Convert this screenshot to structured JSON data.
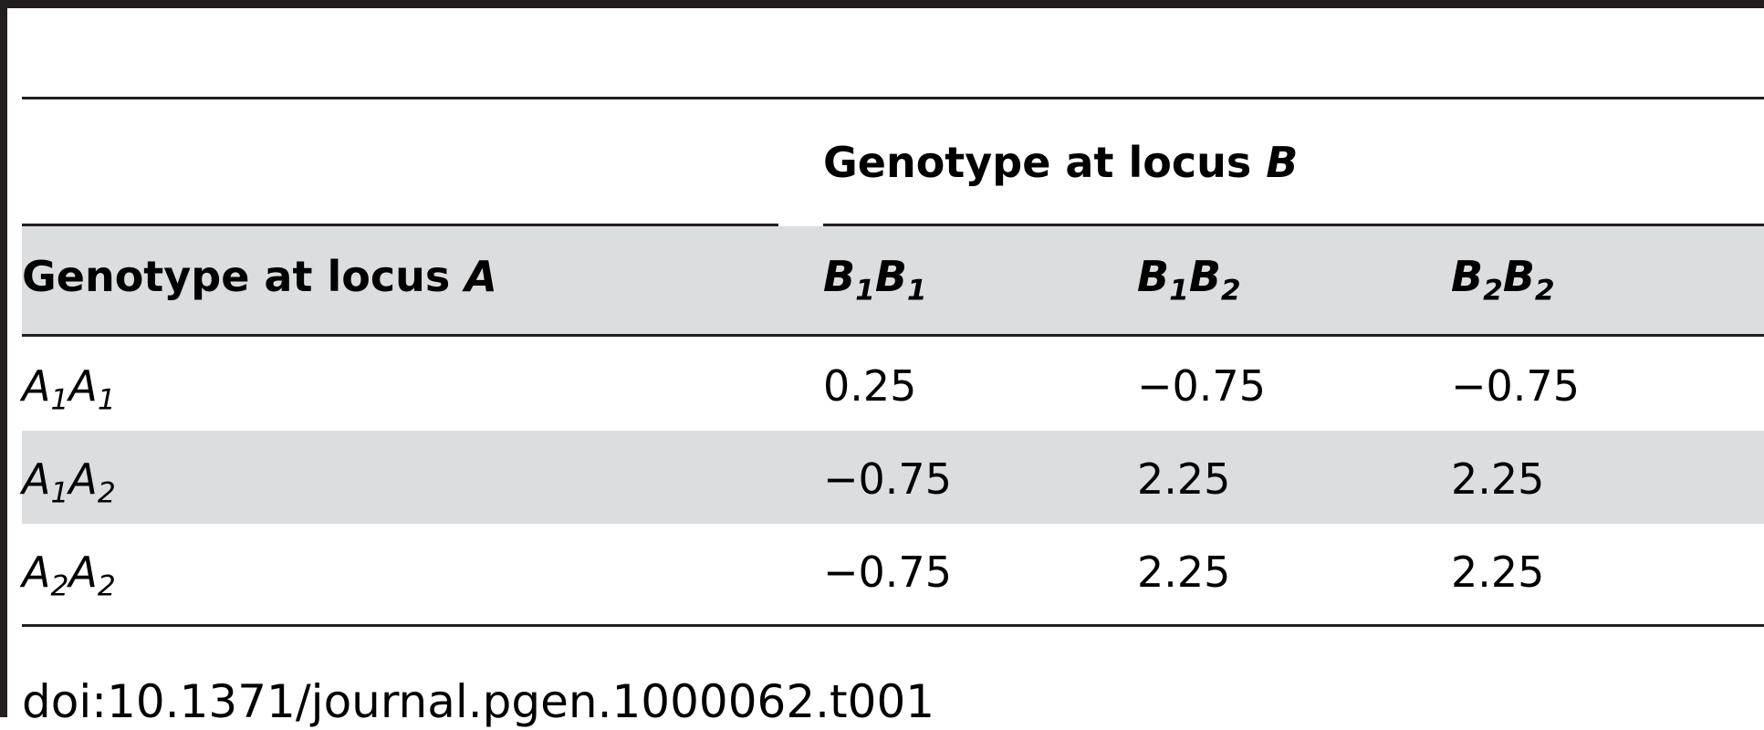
{
  "table": {
    "spanner_header": {
      "text": "Genotype at locus ",
      "italic_var": "B"
    },
    "row_header": {
      "text": "Genotype at locus ",
      "italic_var": "A"
    },
    "columns": [
      {
        "letter1": "B",
        "sub1": "1",
        "letter2": "B",
        "sub2": "1"
      },
      {
        "letter1": "B",
        "sub1": "1",
        "letter2": "B",
        "sub2": "2"
      },
      {
        "letter1": "B",
        "sub1": "2",
        "letter2": "B",
        "sub2": "2"
      }
    ],
    "rows": [
      {
        "letter1": "A",
        "sub1": "1",
        "letter2": "A",
        "sub2": "1",
        "values": [
          "0.25",
          "−0.75",
          "−0.75"
        ]
      },
      {
        "letter1": "A",
        "sub1": "1",
        "letter2": "A",
        "sub2": "2",
        "values": [
          "−0.75",
          "2.25",
          "2.25"
        ]
      },
      {
        "letter1": "A",
        "sub1": "2",
        "letter2": "A",
        "sub2": "2",
        "values": [
          "−0.75",
          "2.25",
          "2.25"
        ]
      }
    ]
  },
  "footer": {
    "doi": "doi:10.1371/journal.pgen.1000062.t001"
  },
  "colors": {
    "rule": "#231f20",
    "shading": "#dcdddf"
  }
}
